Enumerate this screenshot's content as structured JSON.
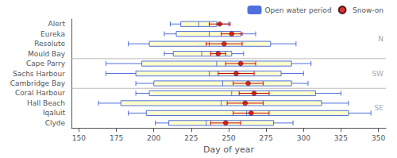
{
  "chart_data": {
    "type": "boxplot",
    "orientation": "horizontal",
    "xlabel": "Day of year",
    "categories": [
      "Alert",
      "Eureka",
      "Resolute",
      "Mould Bay",
      "Cape Parry",
      "Sachs Harbour",
      "Cambridge Bay",
      "Coral Harbour",
      "Hall Beach",
      "Iqaluit",
      "Clyde"
    ],
    "series": [
      {
        "name": "Open water period",
        "type": "boxplot",
        "color": "#ffffcc",
        "whisker_low": [
          211,
          207,
          183,
          207,
          168,
          168,
          188,
          188,
          163,
          183,
          201
        ],
        "box_low": [
          218,
          215,
          197,
          213,
          192,
          188,
          200,
          197,
          178,
          195,
          210
        ],
        "median": [
          230,
          237,
          237,
          232,
          242,
          237,
          246,
          252,
          245,
          262,
          235
        ],
        "box_high": [
          242,
          258,
          278,
          252,
          292,
          285,
          292,
          308,
          312,
          330,
          280
        ],
        "whisker_high": [
          250,
          268,
          295,
          260,
          305,
          300,
          303,
          325,
          330,
          345,
          293
        ]
      },
      {
        "name": "Snow-on",
        "type": "scatter",
        "color": "#cc0000",
        "marker": "circle",
        "values": [
          244,
          252,
          247,
          243,
          258,
          255,
          263,
          267,
          261,
          265,
          248
        ],
        "errors": [
          7,
          7,
          12,
          5,
          10,
          12,
          10,
          10,
          12,
          12,
          10
        ]
      }
    ],
    "regions": [
      {
        "label": "N",
        "color": "#aaaaaa",
        "categories": [
          "Alert",
          "Eureka",
          "Resolute",
          "Mould Bay"
        ]
      },
      {
        "label": "SW",
        "color": "#aaaaaa",
        "categories": [
          "Cape Parry",
          "Sachs Harbour",
          "Cambridge Bay"
        ]
      },
      {
        "label": "SE",
        "color": "#aaaaaa",
        "categories": [
          "Coral Harbour",
          "Hall Beach",
          "Iqaluit",
          "Clyde"
        ]
      }
    ],
    "xlim": [
      145,
      355
    ],
    "xticks": [
      150,
      175,
      200,
      225,
      250,
      275,
      300,
      325,
      350
    ],
    "grid": false,
    "legend": "upper right"
  }
}
